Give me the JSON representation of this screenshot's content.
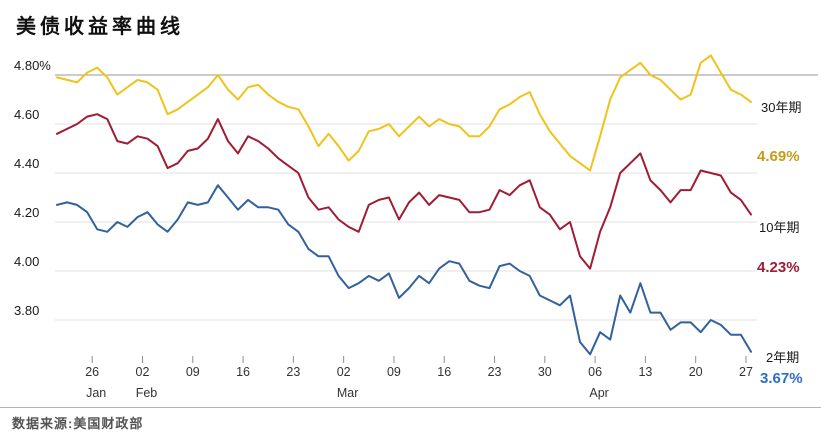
{
  "title": "美债收益率曲线",
  "source": "数据来源:美国财政部",
  "right_labels": {
    "name_30y": "30年期",
    "value_30y": "4.69%",
    "name_10y": "10年期",
    "value_10y": "4.23%",
    "name_2y": "2年期",
    "value_2y": "3.67%"
  },
  "chart_data": {
    "type": "line",
    "title": "美债收益率曲线",
    "xlabel": "",
    "ylabel": "",
    "ylim": [
      3.6,
      4.92
    ],
    "grid": true,
    "legend_position": "right",
    "y_ticks": [
      "4.80%",
      "4.60",
      "4.40",
      "4.20",
      "4.00",
      "3.80"
    ],
    "y_tick_values": [
      4.8,
      4.6,
      4.4,
      4.2,
      4.0,
      3.8
    ],
    "x_ticks": [
      {
        "label": "26",
        "month": "Jan"
      },
      {
        "label": "02",
        "month": "Feb"
      },
      {
        "label": "09"
      },
      {
        "label": "16"
      },
      {
        "label": "23"
      },
      {
        "label": "02",
        "month": "Mar"
      },
      {
        "label": "09"
      },
      {
        "label": "16"
      },
      {
        "label": "23"
      },
      {
        "label": "30"
      },
      {
        "label": "06",
        "month": "Apr"
      },
      {
        "label": "13"
      },
      {
        "label": "20"
      },
      {
        "label": "27"
      }
    ],
    "x_tick_positions": [
      3.5,
      8.5,
      13.5,
      18.5,
      23.5,
      28.5,
      33.5,
      38.5,
      43.5,
      48.5,
      53.5,
      58.5,
      63.5,
      68.5
    ],
    "style": {
      "grid_top_color": "#979797",
      "grid_color": "#e2e2e2",
      "tick_color": "#8d8d8d",
      "axis_text_color": "#333333"
    },
    "series": [
      {
        "id": "30y",
        "name": "30年期",
        "end_label": "4.69%",
        "color": "#EFC31A",
        "label_color": "#C79B18",
        "values": [
          4.79,
          4.78,
          4.77,
          4.81,
          4.83,
          4.79,
          4.72,
          4.75,
          4.78,
          4.77,
          4.74,
          4.64,
          4.66,
          4.69,
          4.72,
          4.75,
          4.8,
          4.74,
          4.7,
          4.75,
          4.76,
          4.72,
          4.69,
          4.67,
          4.66,
          4.59,
          4.51,
          4.56,
          4.51,
          4.45,
          4.49,
          4.57,
          4.58,
          4.6,
          4.55,
          4.59,
          4.63,
          4.59,
          4.62,
          4.6,
          4.59,
          4.55,
          4.55,
          4.59,
          4.66,
          4.68,
          4.71,
          4.73,
          4.64,
          4.57,
          4.52,
          4.47,
          4.44,
          4.41,
          4.55,
          4.7,
          4.79,
          4.82,
          4.85,
          4.8,
          4.78,
          4.74,
          4.7,
          4.72,
          4.85,
          4.88,
          4.81,
          4.74,
          4.72,
          4.69
        ]
      },
      {
        "id": "10y",
        "name": "10年期",
        "end_label": "4.23%",
        "color": "#A01C35",
        "label_color": "#A01C35",
        "values": [
          4.56,
          4.58,
          4.6,
          4.63,
          4.64,
          4.62,
          4.53,
          4.52,
          4.55,
          4.54,
          4.51,
          4.42,
          4.44,
          4.49,
          4.5,
          4.54,
          4.62,
          4.53,
          4.48,
          4.55,
          4.53,
          4.5,
          4.46,
          4.43,
          4.4,
          4.3,
          4.25,
          4.26,
          4.21,
          4.18,
          4.16,
          4.27,
          4.29,
          4.3,
          4.21,
          4.28,
          4.32,
          4.27,
          4.31,
          4.3,
          4.29,
          4.24,
          4.24,
          4.25,
          4.33,
          4.31,
          4.35,
          4.37,
          4.26,
          4.23,
          4.17,
          4.2,
          4.06,
          4.01,
          4.16,
          4.26,
          4.4,
          4.44,
          4.48,
          4.37,
          4.33,
          4.28,
          4.33,
          4.33,
          4.41,
          4.4,
          4.39,
          4.32,
          4.29,
          4.23
        ]
      },
      {
        "id": "2y",
        "name": "2年期",
        "end_label": "3.67%",
        "color": "#33619E",
        "label_color": "#2B6FC2",
        "values": [
          4.27,
          4.28,
          4.27,
          4.24,
          4.17,
          4.16,
          4.2,
          4.18,
          4.22,
          4.24,
          4.19,
          4.16,
          4.21,
          4.28,
          4.27,
          4.28,
          4.35,
          4.3,
          4.25,
          4.29,
          4.26,
          4.26,
          4.25,
          4.19,
          4.16,
          4.09,
          4.06,
          4.06,
          3.98,
          3.93,
          3.95,
          3.98,
          3.96,
          3.99,
          3.89,
          3.93,
          3.98,
          3.95,
          4.01,
          4.04,
          4.03,
          3.96,
          3.94,
          3.93,
          4.02,
          4.03,
          4.0,
          3.98,
          3.9,
          3.88,
          3.86,
          3.9,
          3.71,
          3.66,
          3.75,
          3.72,
          3.9,
          3.83,
          3.95,
          3.83,
          3.83,
          3.76,
          3.79,
          3.79,
          3.75,
          3.8,
          3.78,
          3.74,
          3.74,
          3.67
        ]
      }
    ]
  }
}
